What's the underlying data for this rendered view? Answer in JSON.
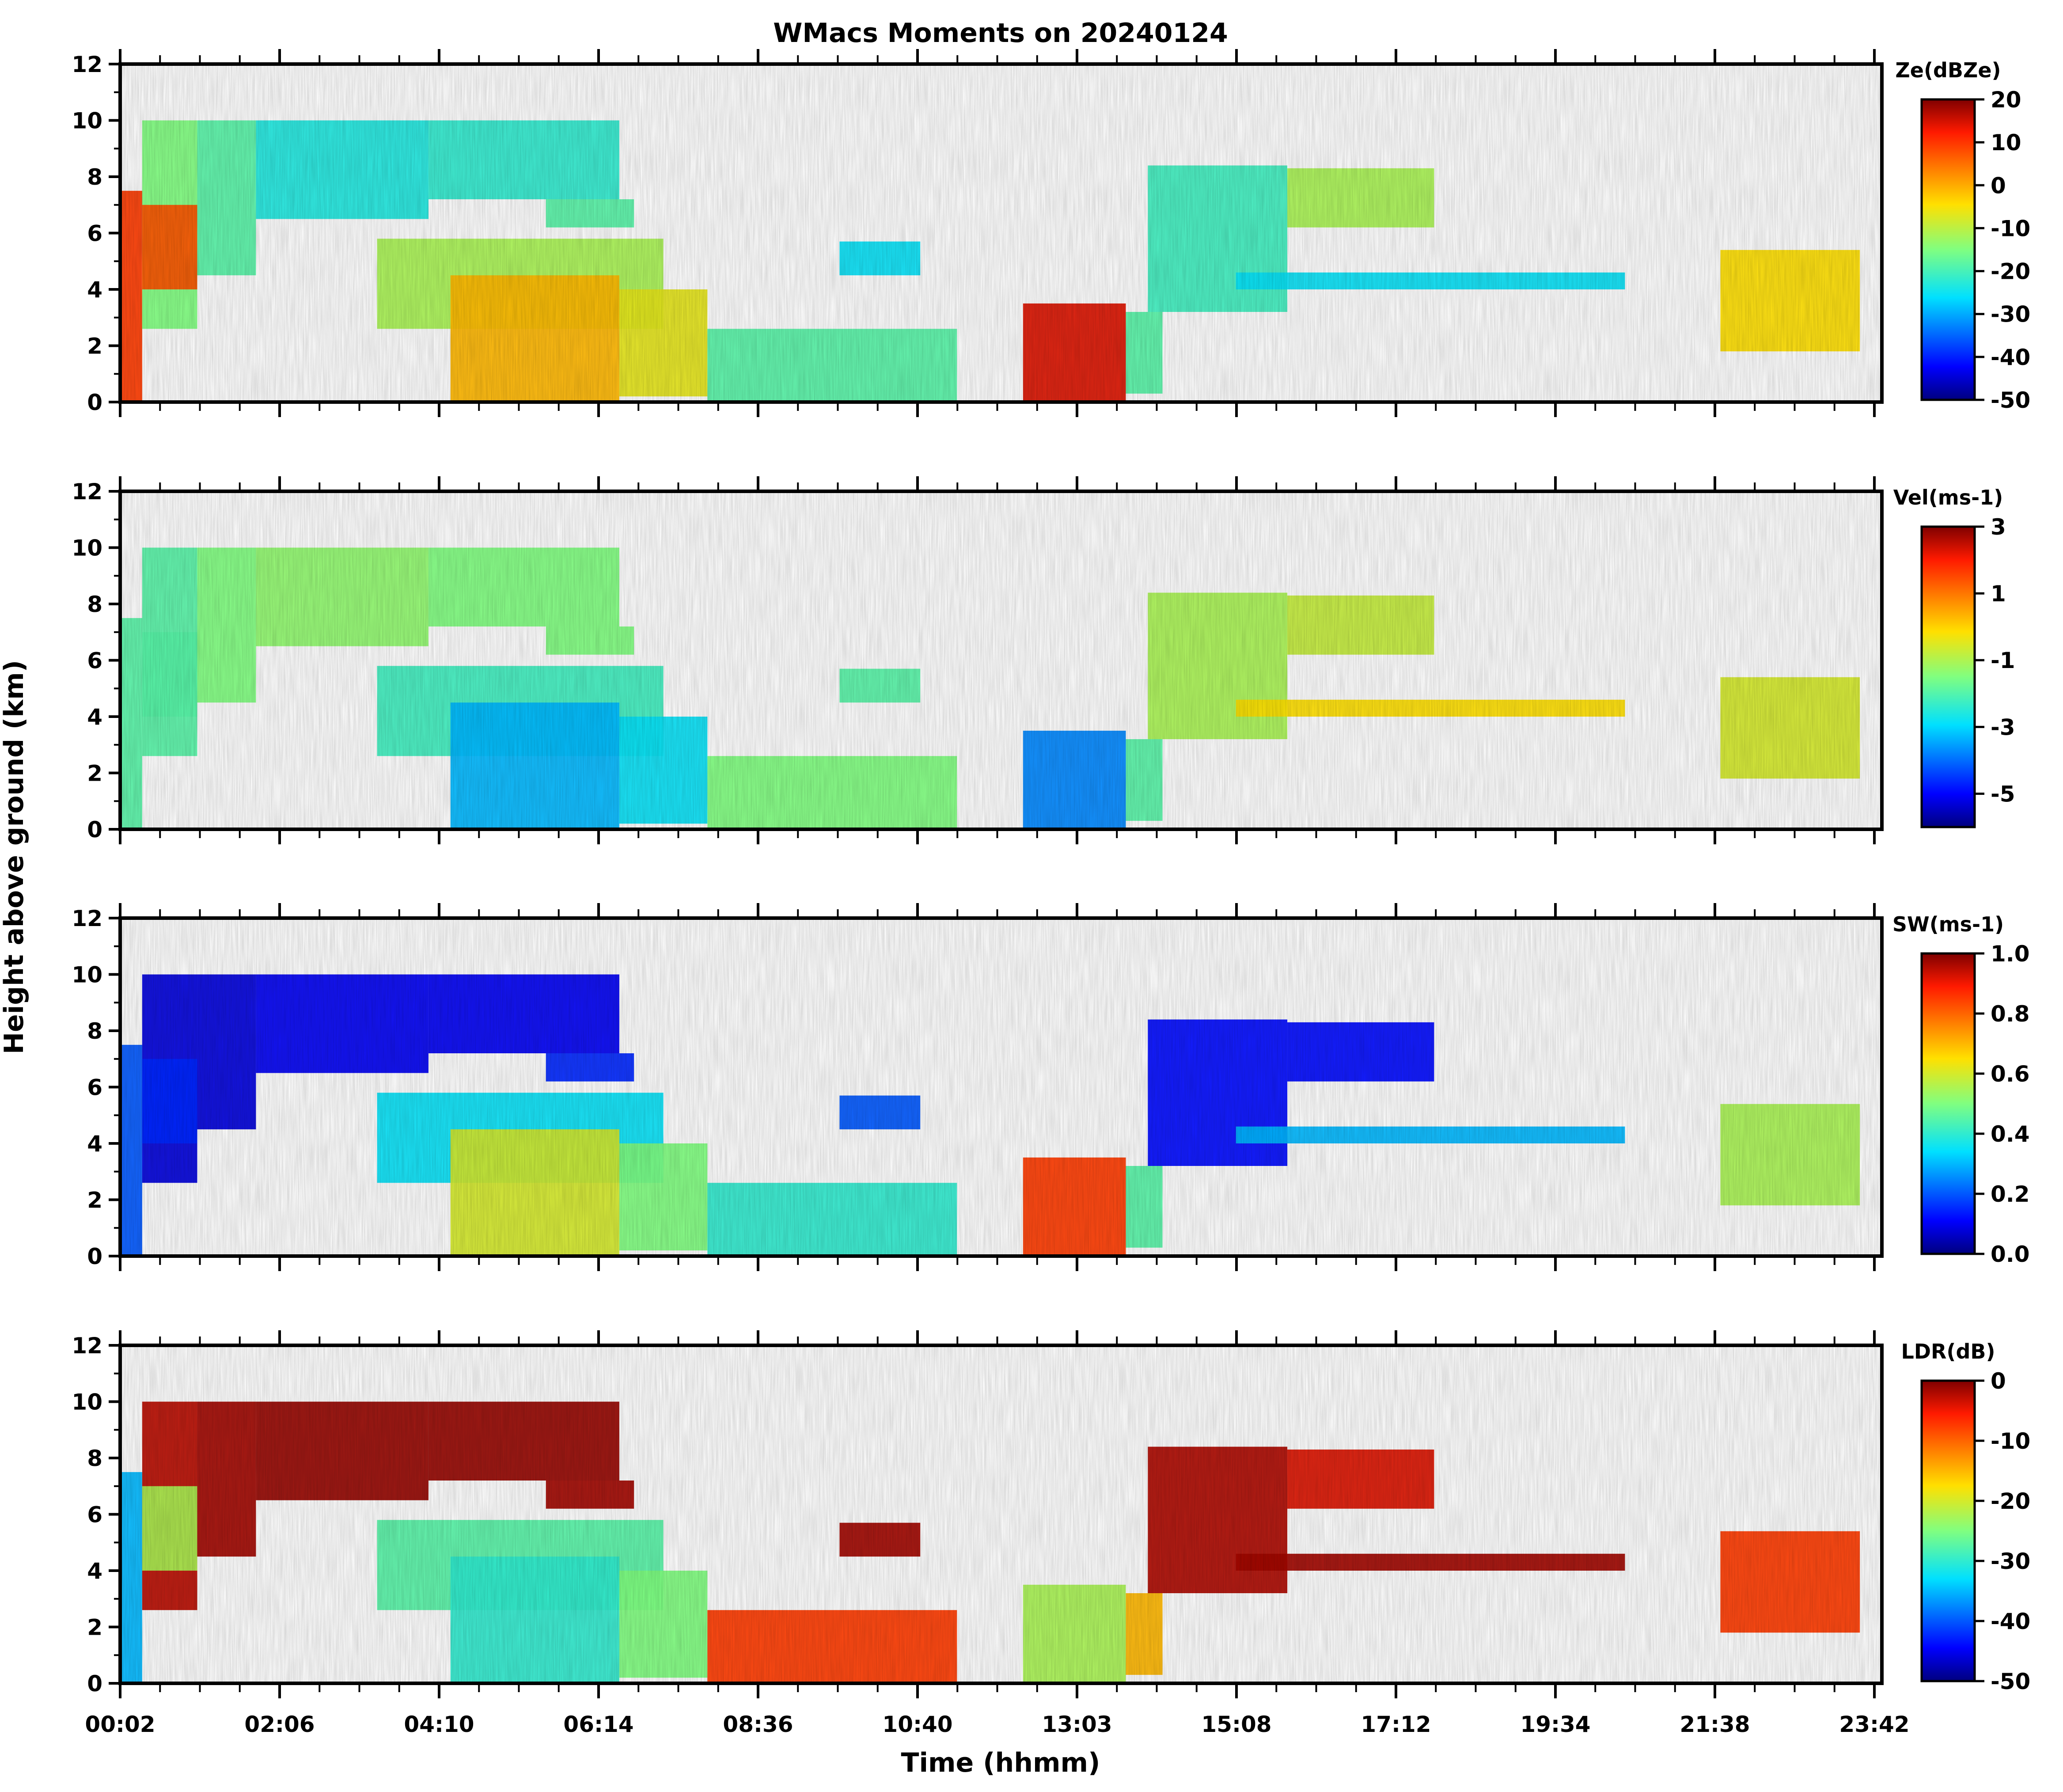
{
  "chart_data": {
    "type": "heatmap",
    "title": "WMacs Moments on 20240124",
    "xlabel": "Time (hhmm)",
    "ylabel": "Height above ground (km)",
    "x_ticks": [
      "00:02",
      "02:06",
      "04:10",
      "06:14",
      "08:36",
      "10:40",
      "13:03",
      "15:08",
      "17:12",
      "19:34",
      "21:38",
      "23:42"
    ],
    "y_ticks": [
      "0",
      "2",
      "4",
      "6",
      "8",
      "10",
      "12"
    ],
    "ylim": [
      0,
      12
    ],
    "colormap": "jet",
    "panels": [
      {
        "variable": "Ze",
        "colorbar_label": "Z<sub>e</sub>(dBZ<sub>e</sub>)",
        "colorbar_label_text": "Ze(dBZe)",
        "colorbar_range": [
          -50,
          20
        ],
        "colorbar_ticks": [
          "20",
          "10",
          "0",
          "-10",
          "-20",
          "-30",
          "-40",
          "-50"
        ]
      },
      {
        "variable": "Vel",
        "colorbar_label_text": "Vel(ms-1)",
        "colorbar_range": [
          -6,
          3
        ],
        "colorbar_ticks": [
          "3",
          "1",
          "-1",
          "-3",
          "-5"
        ]
      },
      {
        "variable": "SW",
        "colorbar_label_text": "SW(ms-1)",
        "colorbar_range": [
          0,
          1
        ],
        "colorbar_ticks": [
          "1.0",
          "0.8",
          "0.6",
          "0.4",
          "0.2",
          "0.0"
        ]
      },
      {
        "variable": "LDR",
        "colorbar_label_text": "LDR(dB)",
        "colorbar_range": [
          -50,
          0
        ],
        "colorbar_ticks": [
          "0",
          "-10",
          "-20",
          "-30",
          "-40",
          "-50"
        ]
      }
    ]
  }
}
